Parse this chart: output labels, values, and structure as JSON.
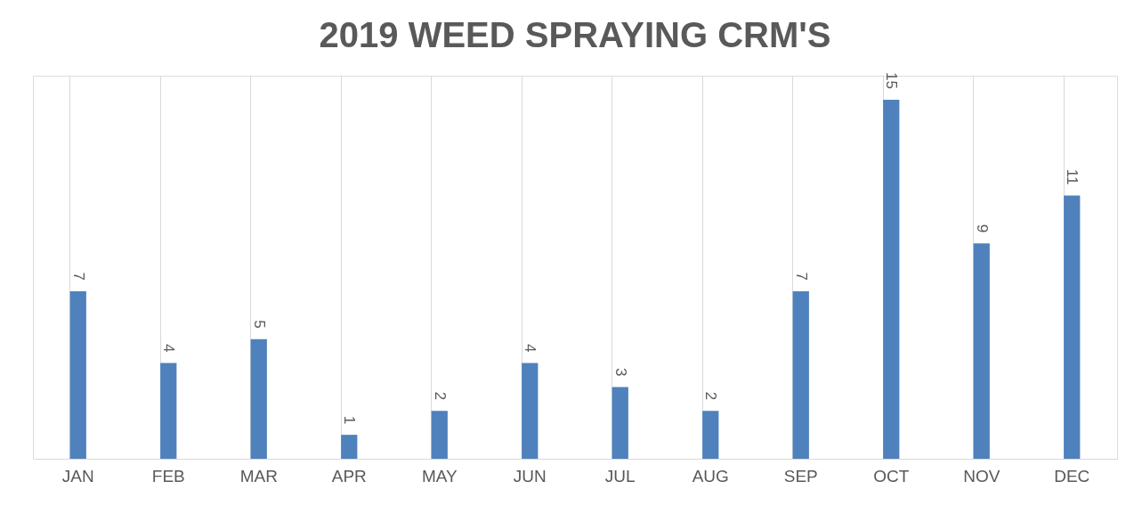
{
  "chart_data": {
    "type": "bar",
    "title": "2019 WEED SPRAYING CRM'S",
    "categories": [
      "JAN",
      "FEB",
      "MAR",
      "APR",
      "MAY",
      "JUN",
      "JUL",
      "AUG",
      "SEP",
      "OCT",
      "NOV",
      "DEC"
    ],
    "values": [
      7,
      4,
      5,
      1,
      2,
      4,
      3,
      2,
      7,
      15,
      9,
      11
    ],
    "color": "#4f81bd",
    "ylim": [
      0,
      16
    ],
    "grid": "x",
    "data_labels": true,
    "tick_labels": "x"
  }
}
